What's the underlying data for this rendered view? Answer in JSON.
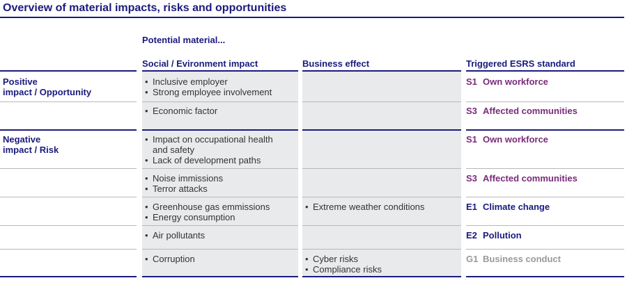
{
  "title": "Overview of material impacts, risks and opportunities",
  "potential_label": "Potential material...",
  "headers": {
    "impact": "Social / Evironment impact",
    "business": "Business effect",
    "standard": "Triggered ESRS standard"
  },
  "colors": {
    "navy": "#1a1a7e",
    "purple": "#7a2a7a",
    "grey": "#999999",
    "shade": "#e9eaeb"
  },
  "groups": [
    {
      "label_line1": "Positive",
      "label_line2": "impact / Opportunity"
    },
    {
      "label_line1": "Negative",
      "label_line2": "impact / Risk"
    }
  ],
  "rows": [
    {
      "impacts": [
        "Inclusive employer",
        "Strong employee involvement"
      ],
      "business": [],
      "std_code": "S1",
      "std_name": "Own workforce",
      "std_color": "#7a2a7a"
    },
    {
      "impacts": [
        "Economic factor"
      ],
      "business": [],
      "std_code": "S3",
      "std_name": "Affected communities",
      "std_color": "#7a2a7a"
    },
    {
      "impacts": [
        "Impact on occupational health and safety",
        "Lack of development paths"
      ],
      "business": [],
      "std_code": "S1",
      "std_name": "Own workforce",
      "std_color": "#7a2a7a"
    },
    {
      "impacts": [
        "Noise immissions",
        "Terror attacks"
      ],
      "business": [],
      "std_code": "S3",
      "std_name": "Affected communities",
      "std_color": "#7a2a7a"
    },
    {
      "impacts": [
        "Greenhouse gas emmissions",
        "Energy consumption"
      ],
      "business": [
        "Extreme weather conditions"
      ],
      "std_code": "E1",
      "std_name": "Climate change",
      "std_color": "#1a1a7e"
    },
    {
      "impacts": [
        "Air pollutants"
      ],
      "business": [],
      "std_code": "E2",
      "std_name": "Pollution",
      "std_color": "#1a1a7e"
    },
    {
      "impacts": [
        "Corruption"
      ],
      "business": [
        "Cyber risks",
        "Compliance risks"
      ],
      "std_code": "G1",
      "std_name": "Business conduct",
      "std_color": "#999999"
    }
  ]
}
